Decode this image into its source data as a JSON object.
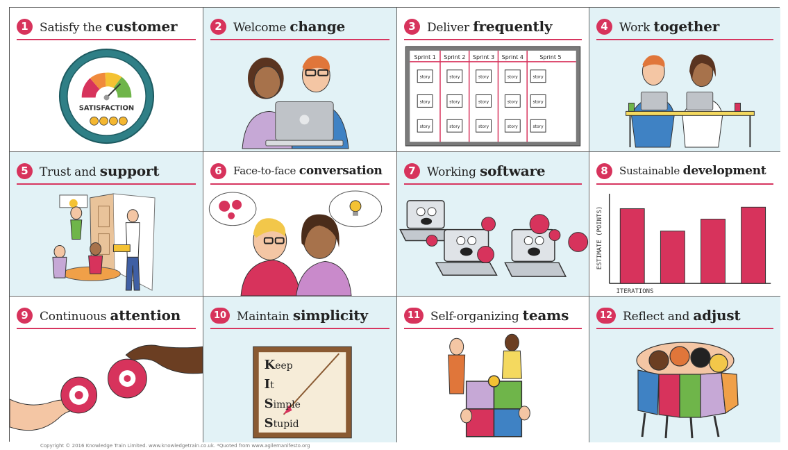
{
  "colors": {
    "accent": "#d7335c",
    "panel_blue": "#e2f2f6",
    "border": "#666666"
  },
  "panels": [
    {
      "number": "1",
      "text": "Satisfy the",
      "bold": "customer",
      "illustration": "satisfaction-gauge",
      "gauge_label": "SATISFACTION"
    },
    {
      "number": "2",
      "text": "Welcome",
      "bold": "change",
      "illustration": "two-people-laptop"
    },
    {
      "number": "3",
      "text": "Deliver",
      "bold": "frequently",
      "illustration": "sprint-board",
      "sprints": [
        "Sprint 1",
        "Sprint 2",
        "Sprint 3",
        "Sprint 4",
        "Sprint 5"
      ],
      "card_label": "story"
    },
    {
      "number": "4",
      "text": "Work",
      "bold": "together",
      "illustration": "people-at-desk"
    },
    {
      "number": "5",
      "text": "Trust and",
      "bold": "support",
      "illustration": "team-room"
    },
    {
      "number": "6",
      "text": "Face-to-face",
      "bold": "conversation",
      "illustration": "two-people-thinking"
    },
    {
      "number": "7",
      "text": "Working",
      "bold": "software",
      "illustration": "laptops-lifting-weights"
    },
    {
      "number": "8",
      "text": "Sustainable",
      "bold": "development",
      "illustration": "bar-chart",
      "ylabel": "ESTIMATE (POINTS)",
      "xlabel": "ITERATIONS"
    },
    {
      "number": "9",
      "text": "Continuous",
      "bold": "attention",
      "illustration": "hands-gears"
    },
    {
      "number": "10",
      "text": "Maintain",
      "bold": "simplicity",
      "illustration": "kiss-sign",
      "kiss_lines": [
        [
          "K",
          "eep"
        ],
        [
          "I",
          "t"
        ],
        [
          "S",
          "imple"
        ],
        [
          "S",
          "tupid"
        ]
      ]
    },
    {
      "number": "11",
      "text": "Self-organizing",
      "bold": "teams",
      "illustration": "puzzle-team"
    },
    {
      "number": "12",
      "text": "Reflect and",
      "bold": "adjust",
      "illustration": "team-huddle"
    }
  ],
  "chart_data": {
    "type": "bar",
    "categories": [
      "",
      "",
      "",
      ""
    ],
    "values": [
      5,
      3.5,
      4.3,
      5.1
    ],
    "xlabel": "ITERATIONS",
    "ylabel": "ESTIMATE (POINTS)",
    "ylim": [
      0,
      6
    ]
  },
  "footer": {
    "copyright": "Copyright © 2016 Knowledge Train Limited. www.knowledgetrain.co.uk. *Quoted from www.agilemanifesto.org"
  }
}
